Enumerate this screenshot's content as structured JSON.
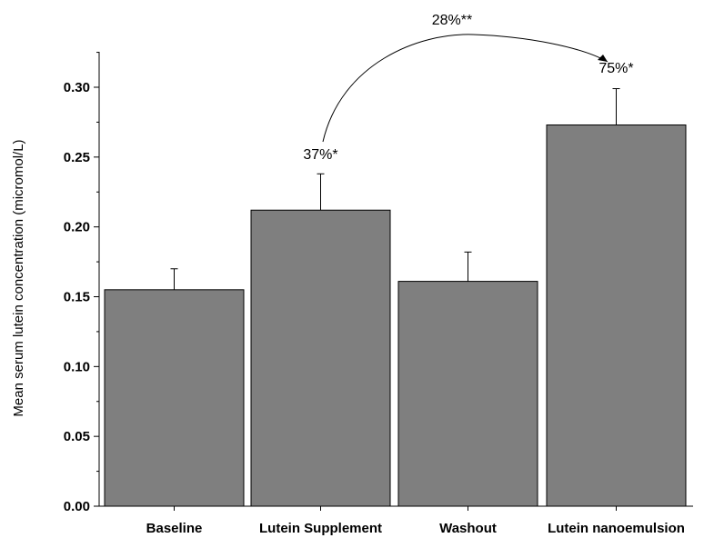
{
  "chart_data": {
    "type": "bar",
    "categories": [
      "Baseline",
      "Lutein Supplement",
      "Washout",
      "Lutein nanoemulsion"
    ],
    "values": [
      0.155,
      0.212,
      0.161,
      0.273
    ],
    "errors": [
      0.015,
      0.026,
      0.021,
      0.026
    ],
    "title": "",
    "xlabel": "",
    "ylabel": "Mean serum lutein concentration (micromol/L)",
    "ylim": [
      0,
      0.325
    ],
    "yticks": [
      "0.00",
      "0.05",
      "0.10",
      "0.15",
      "0.20",
      "0.25",
      "0.30"
    ],
    "grid": false,
    "bar_color": "#7f7f7f",
    "annotations": {
      "bar_labels": [
        {
          "category": "Lutein Supplement",
          "text": "37%*"
        },
        {
          "category": "Lutein nanoemulsion",
          "text": "75%*"
        }
      ],
      "arrow": {
        "from": "Lutein Supplement",
        "to": "Lutein nanoemulsion",
        "text": "28%**"
      }
    }
  }
}
